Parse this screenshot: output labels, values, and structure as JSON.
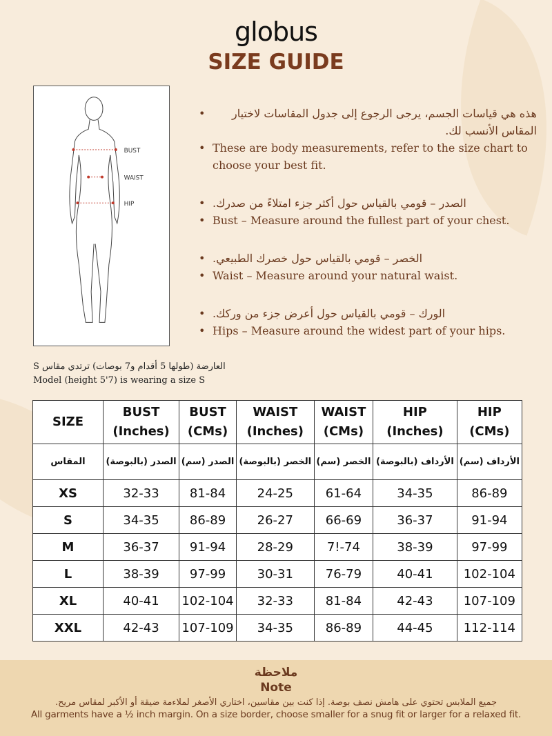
{
  "brand": "globus",
  "title": "SIZE GUIDE",
  "figure": {
    "labels": [
      "BUST",
      "WAIST",
      "HIP"
    ]
  },
  "instructions": [
    {
      "ar": "هذه هي قياسات الجسم، يرجى الرجوع إلى جدول المقاسات لاختيار المقاس الأنسب لك.",
      "en": "These are body measurements, refer to the size chart to choose your best fit."
    },
    {
      "ar": "الصدر – قومي بالقياس حول أكثر جزء امتلاءً من صدرك.",
      "en": "Bust – Measure around the fullest part of your chest."
    },
    {
      "ar": "الخصر – قومي بالقياس حول خصرك الطبيعي.",
      "en": "Waist – Measure around your natural waist."
    },
    {
      "ar": "الورك – قومي بالقياس حول أعرض جزء من وركك.",
      "en": "Hips – Measure around the widest part of your hips."
    }
  ],
  "model": {
    "ar": "العارضة (طولها 5 أقدام و7 بوصات) ترتدي مقاس S",
    "en": "Model (height 5'7) is wearing a size S"
  },
  "table": {
    "headers": [
      [
        "SIZE",
        ""
      ],
      [
        "BUST",
        "(Inches)"
      ],
      [
        "BUST",
        "(CMs)"
      ],
      [
        "WAIST",
        "(Inches)"
      ],
      [
        "WAIST",
        "(CMs)"
      ],
      [
        "HIP",
        "(Inches)"
      ],
      [
        "HIP",
        "(CMs)"
      ]
    ],
    "ar_headers": [
      "المقاس",
      "الصدر (بالبوصة)",
      "الصدر (سم)",
      "الخصر (بالبوصة)",
      "الخصر (سم)",
      "الأرداف (بالبوصة)",
      "الأرداف (سم)"
    ],
    "rows": [
      [
        "XS",
        "32-33",
        "81-84",
        "24-25",
        "61-64",
        "34-35",
        "86-89"
      ],
      [
        "S",
        "34-35",
        "86-89",
        "26-27",
        "66-69",
        "36-37",
        "91-94"
      ],
      [
        "M",
        "36-37",
        "91-94",
        "28-29",
        "7!-74",
        "38-39",
        "97-99"
      ],
      [
        "L",
        "38-39",
        "97-99",
        "30-31",
        "76-79",
        "40-41",
        "102-104"
      ],
      [
        "XL",
        "40-41",
        "102-104",
        "32-33",
        "81-84",
        "42-43",
        "107-109"
      ],
      [
        "XXL",
        "42-43",
        "107-109",
        "34-35",
        "86-89",
        "44-45",
        "112-114"
      ]
    ]
  },
  "note": {
    "ar_title": "ملاحظة",
    "title": "Note",
    "ar": "جميع الملابس تحتوي على هامش نصف بوصة. إذا كنت بين مقاسين، اختاري الأصغر لملاءمة ضيقة أو الأكبر لمقاس مريح.",
    "en": "All garments have a ½ inch margin. On a size border, choose smaller for a snug fit or larger for a relaxed fit."
  },
  "colors": {
    "accent": "#7a3b1e",
    "text": "#6b3a1f",
    "background": "#f8ecdc",
    "note_band": "#eed7b0"
  }
}
